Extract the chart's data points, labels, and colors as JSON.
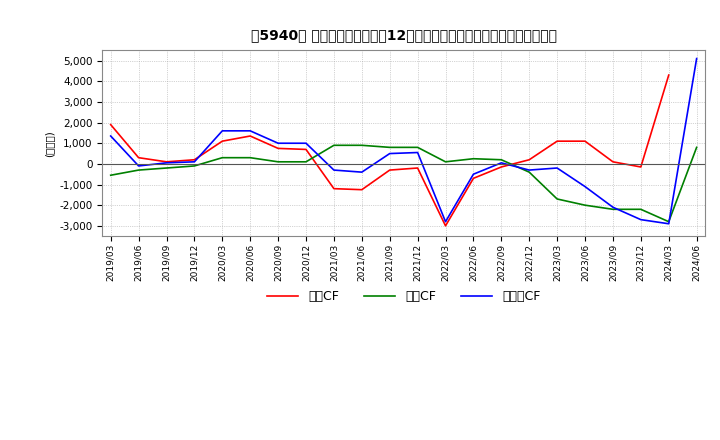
{
  "title3": "［5940］ キャッシュフローの12か月移動合計の対前年同期増減額の推移",
  "ylabel": "(百万円)",
  "ylim": [
    -3500,
    5500
  ],
  "yticks": [
    -3000,
    -2000,
    -1000,
    0,
    1000,
    2000,
    3000,
    4000,
    5000
  ],
  "dates": [
    "2019/03",
    "2019/06",
    "2019/09",
    "2019/12",
    "2020/03",
    "2020/06",
    "2020/09",
    "2020/12",
    "2021/03",
    "2021/06",
    "2021/09",
    "2021/12",
    "2022/03",
    "2022/06",
    "2022/09",
    "2022/12",
    "2023/03",
    "2023/06",
    "2023/09",
    "2023/12",
    "2024/03",
    "2024/06"
  ],
  "operating_cf": [
    1900,
    300,
    100,
    200,
    1100,
    1350,
    750,
    700,
    -1200,
    -1250,
    -300,
    -200,
    -3000,
    -700,
    -150,
    200,
    1100,
    1100,
    100,
    -150,
    4300,
    null
  ],
  "investing_cf": [
    -550,
    -300,
    -200,
    -100,
    300,
    300,
    100,
    100,
    900,
    900,
    800,
    800,
    100,
    250,
    200,
    -400,
    -1700,
    -2000,
    -2200,
    -2200,
    -2800,
    800
  ],
  "free_cf": [
    1350,
    -100,
    50,
    100,
    1600,
    1600,
    1000,
    1000,
    -300,
    -400,
    500,
    550,
    -2800,
    -500,
    50,
    -300,
    -200,
    -1100,
    -2100,
    -2700,
    -2900,
    5100
  ],
  "operating_color": "#FF0000",
  "investing_color": "#008000",
  "free_color": "#0000FF",
  "background_color": "#FFFFFF",
  "grid_color": "#AAAAAA",
  "legend_operating": "営業CF",
  "legend_investing": "投資CF",
  "legend_free": "フリーCF"
}
